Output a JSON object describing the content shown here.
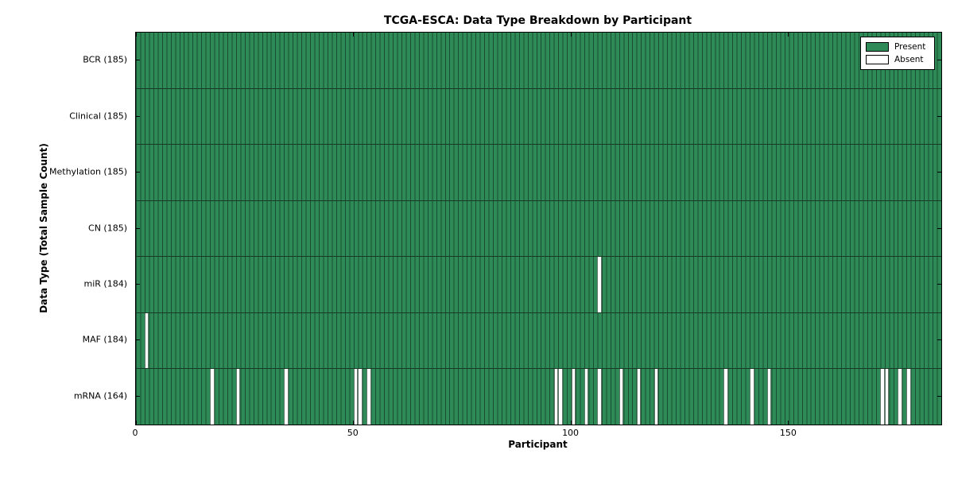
{
  "figure": {
    "title": "TCGA-ESCA: Data Type Breakdown by Participant",
    "xlabel": "Participant",
    "ylabel": "Data Type (Total Sample Count)"
  },
  "chart_data": {
    "type": "heatmap",
    "title": "TCGA-ESCA: Data Type Breakdown by Participant",
    "xlabel": "Participant",
    "ylabel": "Data Type (Total Sample Count)",
    "n_participants": 185,
    "xlim": [
      0,
      185
    ],
    "x_ticks": [
      0,
      50,
      100,
      150
    ],
    "grid": false,
    "legend_position": "upper right",
    "present_color": "#2e8b57",
    "present_edge_color": "#173a26",
    "absent_color": "#ffffff",
    "legend": [
      {
        "key": "present",
        "label": "Present",
        "color": "#2e8b57"
      },
      {
        "key": "absent",
        "label": "Absent",
        "color": "#ffffff"
      }
    ],
    "rows": [
      {
        "key": "bcr",
        "label": "BCR (185)",
        "present_count": 185,
        "absent_participants": []
      },
      {
        "key": "clinical",
        "label": "Clinical (185)",
        "present_count": 185,
        "absent_participants": []
      },
      {
        "key": "methylation",
        "label": "Methylation (185)",
        "present_count": 185,
        "absent_participants": []
      },
      {
        "key": "cn",
        "label": "CN (185)",
        "present_count": 185,
        "absent_participants": []
      },
      {
        "key": "mir",
        "label": "miR (184)",
        "present_count": 184,
        "absent_participants": [
          106
        ]
      },
      {
        "key": "maf",
        "label": "MAF (184)",
        "present_count": 184,
        "absent_participants": [
          2
        ]
      },
      {
        "key": "mrna",
        "label": "mRNA (164)",
        "present_count": 164,
        "absent_participants": [
          17,
          23,
          34,
          50,
          51,
          53,
          96,
          97,
          100,
          103,
          106,
          111,
          115,
          119,
          135,
          141,
          145,
          171,
          172,
          175,
          177
        ]
      }
    ]
  }
}
